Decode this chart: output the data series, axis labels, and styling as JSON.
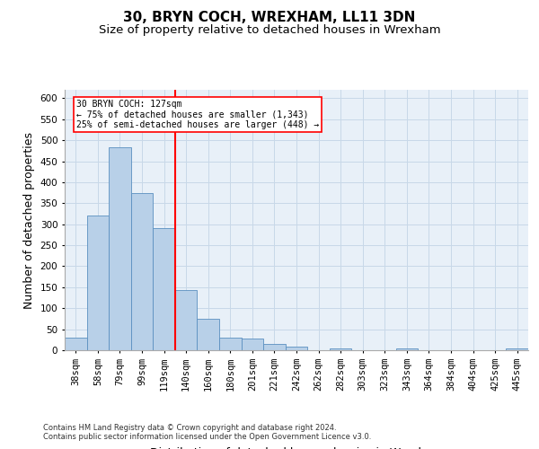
{
  "title": "30, BRYN COCH, WREXHAM, LL11 3DN",
  "subtitle": "Size of property relative to detached houses in Wrexham",
  "xlabel": "Distribution of detached houses by size in Wrexham",
  "ylabel": "Number of detached properties",
  "footnote1": "Contains HM Land Registry data © Crown copyright and database right 2024.",
  "footnote2": "Contains public sector information licensed under the Open Government Licence v3.0.",
  "categories": [
    "38sqm",
    "58sqm",
    "79sqm",
    "99sqm",
    "119sqm",
    "140sqm",
    "160sqm",
    "180sqm",
    "201sqm",
    "221sqm",
    "242sqm",
    "262sqm",
    "282sqm",
    "303sqm",
    "323sqm",
    "343sqm",
    "364sqm",
    "384sqm",
    "404sqm",
    "425sqm",
    "445sqm"
  ],
  "values": [
    31,
    320,
    483,
    374,
    290,
    143,
    75,
    31,
    28,
    15,
    8,
    0,
    4,
    0,
    0,
    4,
    0,
    0,
    0,
    0,
    5
  ],
  "bar_color": "#b8d0e8",
  "bar_edge_color": "#5a8fc0",
  "vline_color": "red",
  "annotation_text": "30 BRYN COCH: 127sqm\n← 75% of detached houses are smaller (1,343)\n25% of semi-detached houses are larger (448) →",
  "annotation_box_color": "white",
  "annotation_box_edge": "red",
  "ylim": [
    0,
    620
  ],
  "yticks": [
    0,
    50,
    100,
    150,
    200,
    250,
    300,
    350,
    400,
    450,
    500,
    550,
    600
  ],
  "grid_color": "#c8d8e8",
  "bg_color": "#e8f0f8",
  "title_fontsize": 11,
  "subtitle_fontsize": 9.5,
  "tick_fontsize": 7.5,
  "label_fontsize": 9,
  "footnote_fontsize": 6.0
}
